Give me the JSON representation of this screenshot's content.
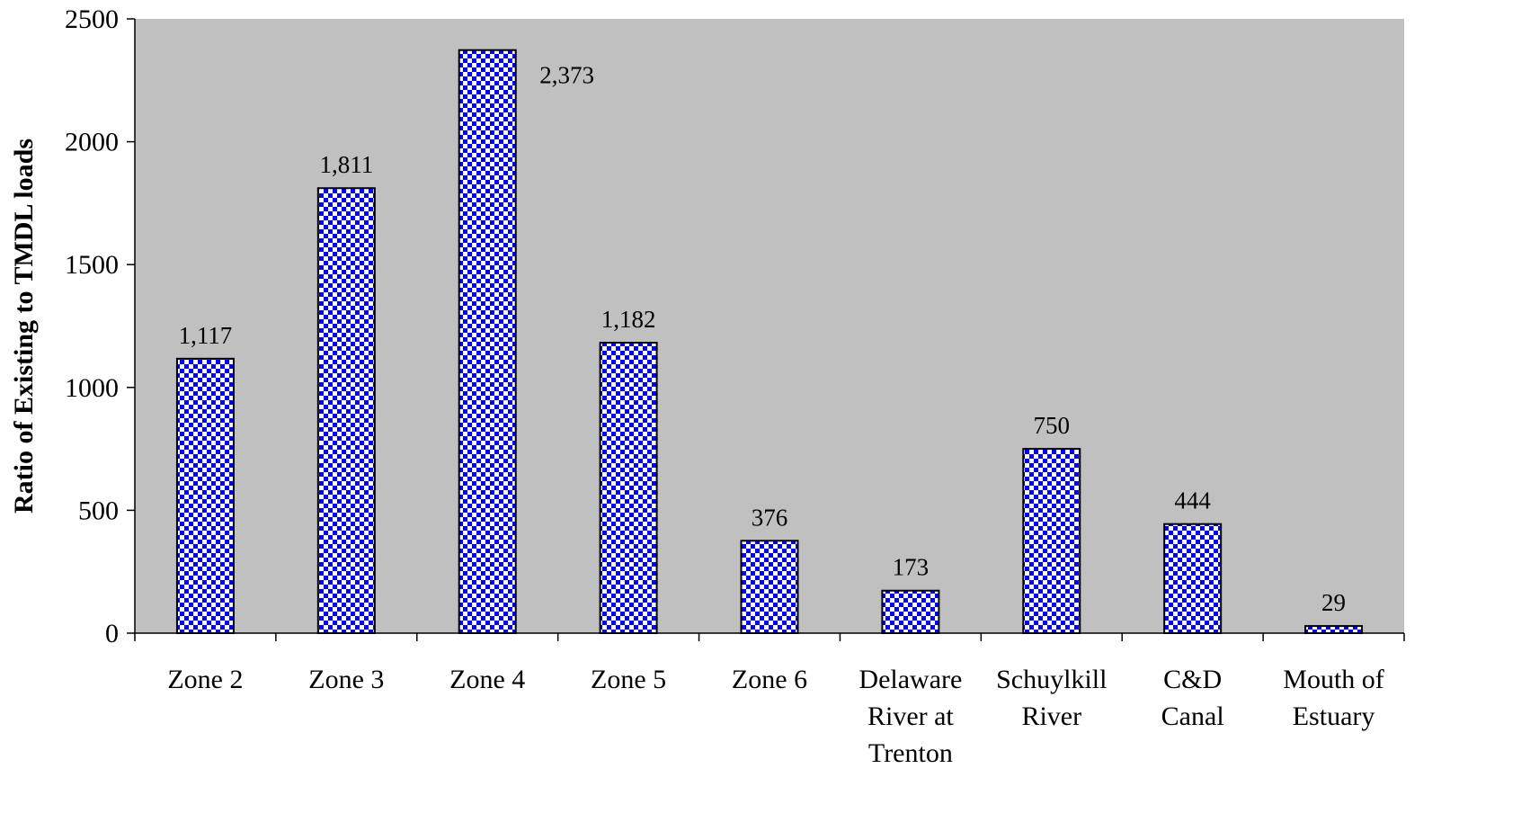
{
  "chart_data": {
    "type": "bar",
    "title": "",
    "xlabel": "",
    "ylabel": "Ratio of Existing to TMDL loads",
    "ylim": [
      0,
      2500
    ],
    "yticks": [
      0,
      500,
      1000,
      1500,
      2000,
      2500
    ],
    "grid": false,
    "legend": "none",
    "categories": [
      [
        "Zone 2"
      ],
      [
        "Zone 3"
      ],
      [
        "Zone 4"
      ],
      [
        "Zone 5"
      ],
      [
        "Zone 6"
      ],
      [
        "Delaware",
        "River at",
        "Trenton"
      ],
      [
        "Schuylkill",
        "River"
      ],
      [
        "C&D",
        "Canal"
      ],
      [
        "Mouth of",
        "Estuary"
      ]
    ],
    "values": [
      1117,
      1811,
      2373,
      1182,
      376,
      173,
      750,
      444,
      29
    ],
    "data_labels": [
      "1,117",
      "1,811",
      "2,373",
      "1,182",
      "376",
      "173",
      "750",
      "444",
      "29"
    ],
    "colors": {
      "plot_background": "#c0c0c0",
      "bar_checker_a": "#0000ff",
      "bar_checker_b": "#ffffff",
      "bar_outline": "#000000"
    }
  }
}
